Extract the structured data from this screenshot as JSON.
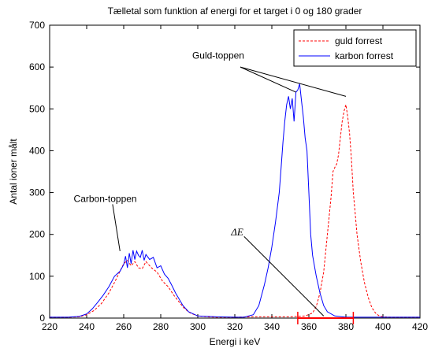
{
  "chart_data": {
    "type": "line",
    "title": "Tælletal som funktion af energi for et target i 0 og 180 grader",
    "xlabel": "Energi i keV",
    "ylabel": "Antal ioner målt",
    "xlim": [
      220,
      420
    ],
    "ylim": [
      0,
      700
    ],
    "xticks": [
      220,
      240,
      260,
      280,
      300,
      320,
      340,
      360,
      380,
      400,
      420
    ],
    "yticks": [
      0,
      100,
      200,
      300,
      400,
      500,
      600,
      700
    ],
    "grid": false,
    "legend_position": "top-right",
    "series": [
      {
        "name": "guld forrest",
        "color": "#ff0000",
        "style": "dashed",
        "x": [
          220,
          230,
          236,
          240,
          244,
          248,
          252,
          255,
          258,
          260,
          262,
          264,
          266,
          268,
          270,
          272,
          275,
          278,
          281,
          284,
          287,
          290,
          293,
          296,
          300,
          305,
          310,
          320,
          330,
          340,
          350,
          358,
          362,
          364,
          366,
          368,
          370,
          372,
          373,
          374,
          375,
          376,
          377,
          378,
          379,
          380,
          381,
          382,
          383,
          384,
          385,
          386,
          388,
          390,
          392,
          394,
          396,
          398,
          400,
          405,
          410,
          420
        ],
        "y": [
          2,
          2,
          3,
          8,
          18,
          35,
          60,
          85,
          112,
          130,
          138,
          125,
          135,
          120,
          118,
          135,
          120,
          110,
          88,
          75,
          55,
          38,
          22,
          12,
          5,
          3,
          2,
          2,
          3,
          3,
          3,
          5,
          12,
          28,
          60,
          110,
          200,
          290,
          350,
          360,
          368,
          390,
          430,
          470,
          495,
          510,
          480,
          440,
          380,
          300,
          250,
          200,
          135,
          85,
          50,
          25,
          12,
          5,
          3,
          2,
          2,
          2
        ]
      },
      {
        "name": "karbon forrest",
        "color": "#0000ff",
        "style": "solid",
        "x": [
          220,
          230,
          236,
          240,
          243,
          246,
          249,
          252,
          255,
          258,
          260,
          261,
          262,
          263,
          264,
          265,
          266,
          267,
          268,
          269,
          270,
          271,
          272,
          274,
          276,
          278,
          280,
          282,
          284,
          286,
          288,
          290,
          292,
          295,
          300,
          310,
          320,
          325,
          330,
          333,
          336,
          338,
          340,
          342,
          344,
          345,
          346,
          347,
          348,
          349,
          350,
          351,
          352,
          353,
          354,
          355,
          356,
          357,
          358,
          359,
          360,
          361,
          362,
          364,
          366,
          368,
          370,
          374,
          378,
          380,
          385,
          390,
          400,
          420
        ],
        "y": [
          2,
          2,
          4,
          10,
          22,
          38,
          55,
          75,
          100,
          112,
          128,
          148,
          120,
          155,
          130,
          162,
          140,
          160,
          150,
          145,
          162,
          138,
          152,
          140,
          145,
          120,
          125,
          105,
          95,
          78,
          60,
          45,
          30,
          15,
          5,
          3,
          2,
          2,
          8,
          30,
          80,
          120,
          170,
          230,
          300,
          360,
          420,
          470,
          510,
          530,
          500,
          525,
          470,
          540,
          545,
          560,
          520,
          480,
          430,
          400,
          300,
          200,
          150,
          100,
          60,
          30,
          15,
          5,
          3,
          2,
          2,
          2,
          2,
          2
        ]
      }
    ],
    "annotations": [
      {
        "text": "Guld-toppen"
      },
      {
        "text": "Carbon-toppen"
      },
      {
        "text": "ΔE",
        "range": [
          354,
          384
        ]
      }
    ]
  }
}
